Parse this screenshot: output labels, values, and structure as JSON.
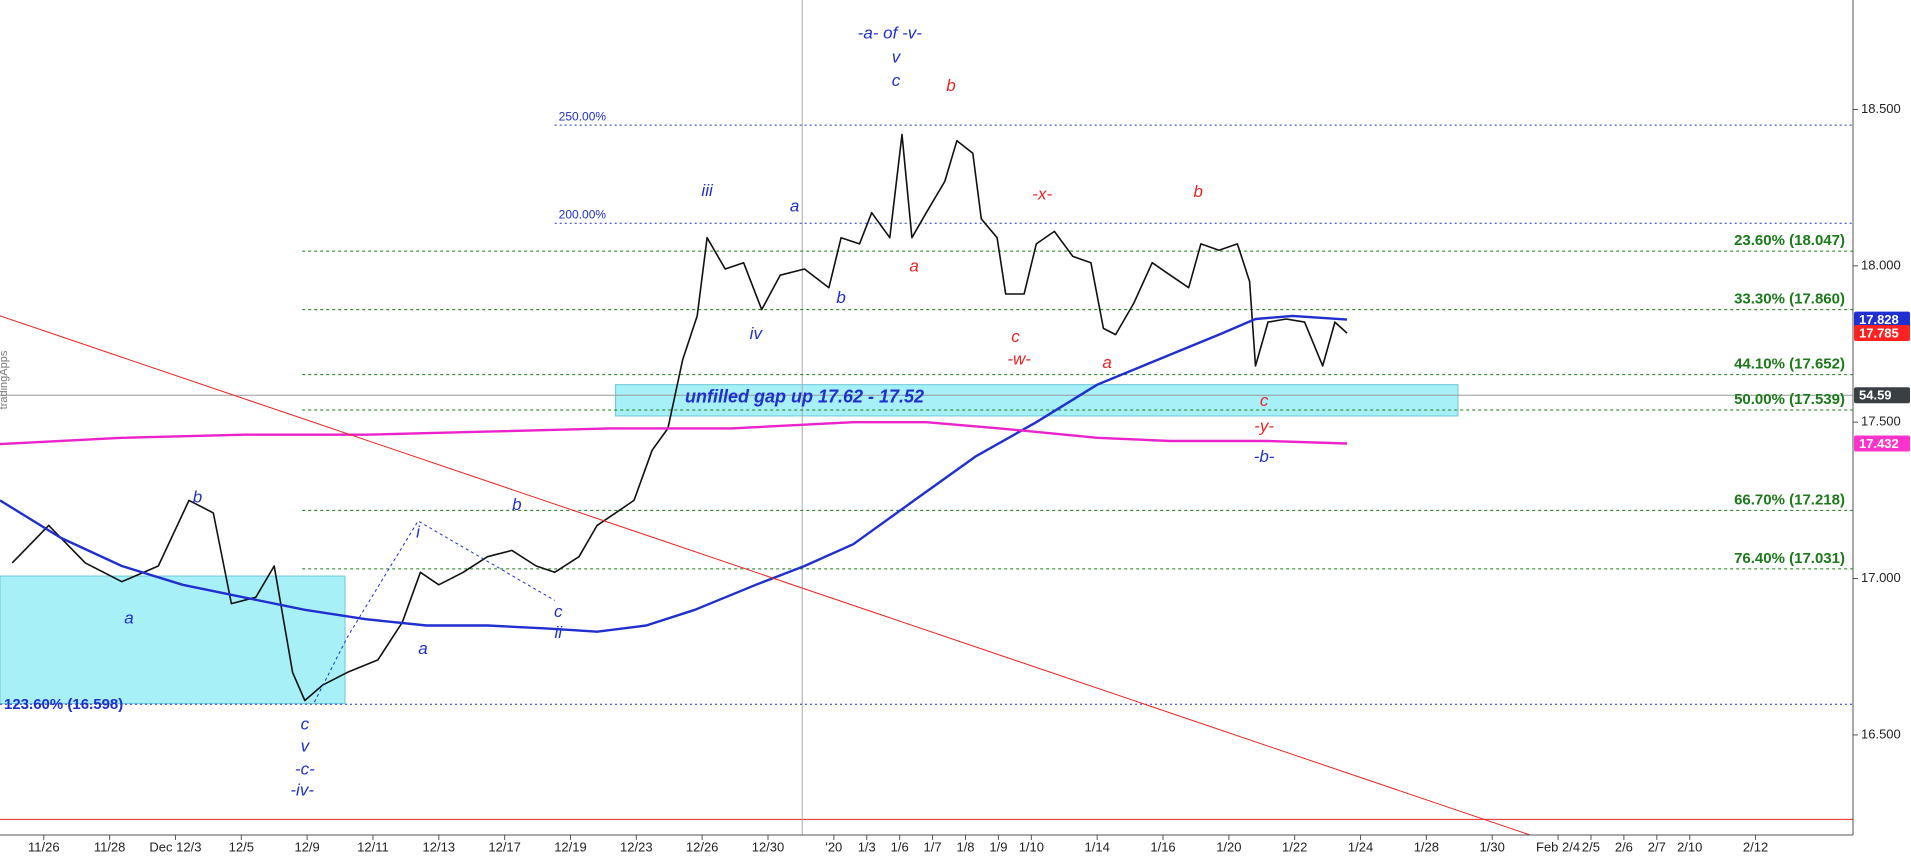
{
  "chart_data": {
    "type": "line",
    "watermark": "tradingApps",
    "xlim": [
      -1.33,
      54.96
    ],
    "ylim": [
      16.18,
      18.85
    ],
    "xticks": [
      {
        "value": 0,
        "label": "11/26"
      },
      {
        "value": 2,
        "label": "11/28"
      },
      {
        "value": 4,
        "label": "Dec 12/3"
      },
      {
        "value": 6,
        "label": "12/5"
      },
      {
        "value": 8,
        "label": "12/9"
      },
      {
        "value": 10,
        "label": "12/11"
      },
      {
        "value": 12,
        "label": "12/13"
      },
      {
        "value": 14,
        "label": "12/17"
      },
      {
        "value": 16,
        "label": "12/19"
      },
      {
        "value": 18,
        "label": "12/23"
      },
      {
        "value": 20,
        "label": "12/26"
      },
      {
        "value": 22,
        "label": "12/30"
      },
      {
        "value": 24,
        "label": "'20"
      },
      {
        "value": 25,
        "label": "1/3"
      },
      {
        "value": 26,
        "label": "1/6"
      },
      {
        "value": 27,
        "label": "1/7"
      },
      {
        "value": 28,
        "label": "1/8"
      },
      {
        "value": 29,
        "label": "1/9"
      },
      {
        "value": 30,
        "label": "1/10"
      },
      {
        "value": 32,
        "label": "1/14"
      },
      {
        "value": 34,
        "label": "1/16"
      },
      {
        "value": 36,
        "label": "1/20"
      },
      {
        "value": 38,
        "label": "1/22"
      },
      {
        "value": 40,
        "label": "1/24"
      },
      {
        "value": 42,
        "label": "1/28"
      },
      {
        "value": 44,
        "label": "1/30"
      },
      {
        "value": 46,
        "label": "Feb 2/4"
      },
      {
        "value": 47,
        "label": "2/5"
      },
      {
        "value": 48,
        "label": "2/6"
      },
      {
        "value": 49,
        "label": "2/7"
      },
      {
        "value": 50,
        "label": "2/10"
      },
      {
        "value": 52,
        "label": "2/12"
      }
    ],
    "yticks": [
      {
        "value": 16.5,
        "label": "16.500"
      },
      {
        "value": 17,
        "label": "17.000"
      },
      {
        "value": 17.5,
        "label": "17.500"
      },
      {
        "value": 18,
        "label": "18.000"
      },
      {
        "value": 18.5,
        "label": "18.500"
      }
    ],
    "series": [
      {
        "color": "#111111",
        "width": 1.6,
        "x": [
          -0.96,
          0.15,
          1.26,
          2.37,
          3.48,
          4.41,
          5.15,
          5.7,
          6.44,
          7,
          7.56,
          7.93,
          8.48,
          9.22,
          10.15,
          10.89,
          11.44,
          12,
          12.74,
          13.48,
          14.22,
          14.96,
          15.52,
          16.26,
          16.81,
          17.37,
          17.93,
          18.48,
          18.96,
          19.41,
          19.85,
          20.15,
          20.7,
          21.26,
          21.81,
          22.37,
          23.11,
          23.85,
          24.22,
          24.78,
          25.15,
          25.7,
          26.07,
          26.37,
          26.81,
          27.37,
          27.74,
          28.22,
          28.48,
          28.96,
          29.22,
          29.78,
          30.15,
          30.7,
          31.26,
          31.81,
          32.19,
          32.56,
          33.11,
          33.67,
          34.22,
          34.78,
          35.15,
          35.7,
          36.26,
          36.63,
          36.81,
          37.19,
          37.74,
          38.3,
          38.85,
          39.22,
          39.59
        ],
        "values": [
          17.05,
          17.17,
          17.05,
          16.99,
          17.04,
          17.25,
          17.21,
          16.92,
          16.94,
          17.04,
          16.7,
          16.61,
          16.66,
          16.7,
          16.74,
          16.86,
          17.02,
          16.98,
          17.02,
          17.07,
          17.09,
          17.04,
          17.02,
          17.07,
          17.17,
          17.21,
          17.25,
          17.41,
          17.48,
          17.7,
          17.84,
          18.09,
          17.99,
          18.01,
          17.86,
          17.97,
          17.99,
          17.93,
          18.09,
          18.07,
          18.17,
          18.09,
          18.42,
          18.09,
          18.17,
          18.27,
          18.4,
          18.36,
          18.15,
          18.09,
          17.91,
          17.91,
          18.07,
          18.11,
          18.03,
          18.01,
          17.8,
          17.78,
          17.88,
          18.01,
          17.97,
          17.93,
          18.07,
          18.05,
          18.07,
          17.95,
          17.68,
          17.82,
          17.83,
          17.82,
          17.68,
          17.82,
          17.785
        ]
      },
      {
        "color": "#1f2fd0",
        "width": 2.4,
        "x": [
          -1.33,
          0.52,
          2.37,
          4.22,
          6.07,
          7.93,
          9.78,
          11.63,
          13.48,
          15.33,
          16.81,
          18.3,
          19.78,
          21.63,
          23.11,
          24.59,
          26.44,
          28.3,
          30.15,
          32,
          33.85,
          35.7,
          36.81,
          37.93,
          39.59
        ],
        "values": [
          17.25,
          17.13,
          17.04,
          16.98,
          16.94,
          16.9,
          16.87,
          16.85,
          16.85,
          16.84,
          16.83,
          16.85,
          16.9,
          16.98,
          17.04,
          17.11,
          17.25,
          17.39,
          17.5,
          17.62,
          17.7,
          17.78,
          17.83,
          17.84,
          17.828
        ]
      },
      {
        "color": "#ee22cc",
        "width": 2.4,
        "x": [
          -1.33,
          2.37,
          6.07,
          9.78,
          13.48,
          17.19,
          20.89,
          24.59,
          26.81,
          29.04,
          32,
          34.22,
          37.19,
          39.59
        ],
        "values": [
          17.43,
          17.45,
          17.46,
          17.46,
          17.47,
          17.48,
          17.48,
          17.5,
          17.5,
          17.48,
          17.45,
          17.44,
          17.44,
          17.432
        ]
      },
      {
        "color": "#ee2222",
        "width": 1,
        "x": [
          -1.33,
          45.15
        ],
        "values": [
          17.84,
          16.18
        ]
      },
      {
        "color": "#1f2fd0",
        "width": 1,
        "dash": true,
        "x": [
          8.22,
          9.22,
          11.37,
          15.52
        ],
        "values": [
          16.605,
          16.8125,
          17.184,
          16.93
        ]
      }
    ],
    "boxes": [
      {
        "x": [
          -1.33,
          9.15
        ],
        "y": [
          16.6,
          17.008
        ],
        "color": "#a8f0f8"
      },
      {
        "x": [
          17.37,
          42.96
        ],
        "y": [
          17.52,
          17.62
        ],
        "color": "#a8f0f8"
      }
    ],
    "levels": [
      {
        "label": "250.00%",
        "value": 18.45,
        "from": 15.52,
        "color": "#1f2fd0",
        "side": "left"
      },
      {
        "label": "200.00%",
        "value": 18.136,
        "from": 15.52,
        "color": "#1f2fd0",
        "side": "left"
      },
      {
        "label": "23.60% (18.047)",
        "value": 18.047,
        "from": 7.85,
        "color": "#1a7a1a",
        "side": "right"
      },
      {
        "label": "33.30% (17.860)",
        "value": 17.86,
        "from": 7.85,
        "color": "#1a7a1a",
        "side": "right"
      },
      {
        "label": "44.10% (17.652)",
        "value": 17.652,
        "from": 7.85,
        "color": "#1a7a1a",
        "side": "right"
      },
      {
        "label": "50.00% (17.539)",
        "value": 17.539,
        "from": 7.85,
        "color": "#1a7a1a",
        "side": "right"
      },
      {
        "label": "66.70% (17.218)",
        "value": 17.218,
        "from": 7.85,
        "color": "#1a7a1a",
        "side": "right"
      },
      {
        "label": "76.40% (17.031)",
        "value": 17.031,
        "from": 7.85,
        "color": "#1a7a1a",
        "side": "right"
      },
      {
        "label": "123.60% (16.598)",
        "value": 16.598,
        "from": -1.33,
        "color": "#1f2fd0",
        "side": "left"
      }
    ],
    "hlines": [
      {
        "value": 16.23,
        "color": "#ee2222"
      },
      {
        "value": 17.586,
        "color": "#999999"
      }
    ],
    "vlines": [
      {
        "value": 23.04,
        "color": "#aaaaaa"
      }
    ],
    "annotations": [
      {
        "text": "-a- of -v-",
        "x": 25.7,
        "y": 18.742,
        "color": "#1f2fd0"
      },
      {
        "text": "v",
        "x": 25.89,
        "y": 18.664,
        "color": "#1f2fd0"
      },
      {
        "text": "c",
        "x": 25.89,
        "y": 18.59,
        "color": "#1f2fd0"
      },
      {
        "text": "b",
        "x": 27.56,
        "y": 18.574,
        "color": "#ee2222"
      },
      {
        "text": "iii",
        "x": 20.15,
        "y": 18.238,
        "color": "#1f2fd0"
      },
      {
        "text": "a",
        "x": 22.81,
        "y": 18.188,
        "color": "#1f2fd0"
      },
      {
        "text": "iv",
        "x": 21.63,
        "y": 17.781,
        "color": "#1f2fd0"
      },
      {
        "text": "b",
        "x": 24.22,
        "y": 17.895,
        "color": "#1f2fd0"
      },
      {
        "text": "a",
        "x": 26.44,
        "y": 17.996,
        "color": "#ee2222"
      },
      {
        "text": "-x-",
        "x": 30.33,
        "y": 18.227,
        "color": "#ee2222"
      },
      {
        "text": "c",
        "x": 29.52,
        "y": 17.77,
        "color": "#ee2222"
      },
      {
        "text": "-w-",
        "x": 29.63,
        "y": 17.699,
        "color": "#ee2222"
      },
      {
        "text": "a",
        "x": 32.3,
        "y": 17.688,
        "color": "#ee2222"
      },
      {
        "text": "b",
        "x": 35.07,
        "y": 18.234,
        "color": "#ee2222"
      },
      {
        "text": "c",
        "x": 37.07,
        "y": 17.566,
        "color": "#ee2222"
      },
      {
        "text": "-y-",
        "x": 37.07,
        "y": 17.484,
        "color": "#ee2222"
      },
      {
        "text": "-b-",
        "x": 37.07,
        "y": 17.387,
        "color": "#1f2fd0"
      },
      {
        "text": "b",
        "x": 4.67,
        "y": 17.258,
        "color": "#1f2fd0"
      },
      {
        "text": "a",
        "x": 2.59,
        "y": 16.871,
        "color": "#1f2fd0"
      },
      {
        "text": "i",
        "x": 11.37,
        "y": 17.145,
        "color": "#1f2fd0"
      },
      {
        "text": "b",
        "x": 14.37,
        "y": 17.234,
        "color": "#1f2fd0"
      },
      {
        "text": "c",
        "x": 15.63,
        "y": 16.891,
        "color": "#1f2fd0"
      },
      {
        "text": "ii",
        "x": 15.63,
        "y": 16.824,
        "color": "#1f2fd0"
      },
      {
        "text": "a",
        "x": 11.52,
        "y": 16.773,
        "color": "#1f2fd0"
      },
      {
        "text": "c",
        "x": 7.93,
        "y": 16.531,
        "color": "#1f2fd0"
      },
      {
        "text": "v",
        "x": 7.93,
        "y": 16.461,
        "color": "#1f2fd0"
      },
      {
        "text": "-c-",
        "x": 7.93,
        "y": 16.387,
        "color": "#1f2fd0"
      },
      {
        "text": "-iv-",
        "x": 7.85,
        "y": 16.32,
        "color": "#1f2fd0"
      },
      {
        "text": "unfilled gap up 17.62 - 17.52",
        "x": 23.11,
        "y": 17.578,
        "color": "#1f2fd0",
        "bold": true
      }
    ],
    "price_tags": [
      {
        "value": 17.828,
        "color": "#1f2fd0"
      },
      {
        "value": 17.785,
        "color": "#ff2222"
      },
      {
        "value": 54.59,
        "at": 17.586,
        "color": "#3a3f44"
      },
      {
        "value": 17.432,
        "color": "#ff33cc"
      }
    ]
  }
}
